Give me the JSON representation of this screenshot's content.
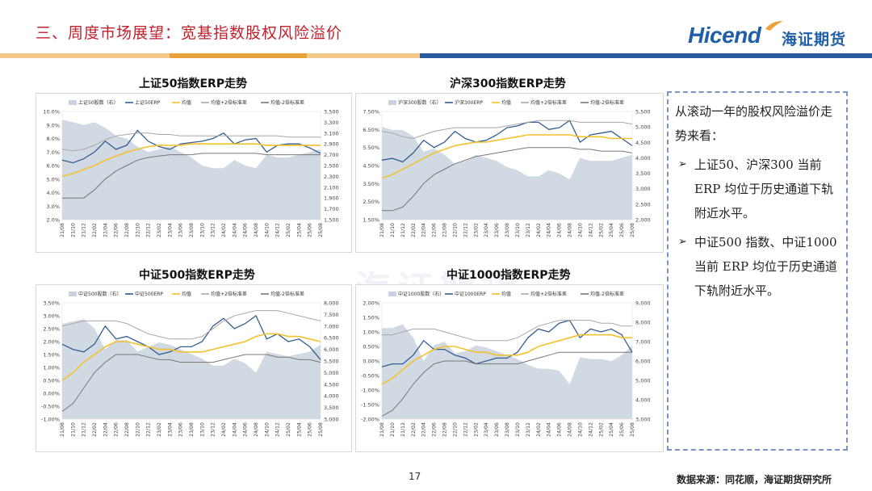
{
  "header": {
    "title": "三、周度市场展望：宽基指数股权风险溢价",
    "logo_en": "Hicend",
    "logo_cn": "海证期货"
  },
  "colors": {
    "title_red": "#c0202a",
    "brand_blue": "#1f5fa8",
    "band_orange": "#e8a23a",
    "band_blue": "#2c5aa0",
    "area_gray": "#c9d2de",
    "erp_blue": "#345d92",
    "mean_yellow": "#f2c12e",
    "upper_gray": "#a8a8a8",
    "lower_gray": "#777777"
  },
  "chart_data": [
    {
      "type": "line",
      "title": "上证50指数ERP走势",
      "legend": [
        "上证50股数（右）",
        "上证50ERP",
        "均值",
        "均值+2倍标准差",
        "均值-2倍标准差"
      ],
      "left_axis": {
        "ticks": [
          "10.0%",
          "9.0%",
          "8.0%",
          "7.0%",
          "6.0%",
          "5.0%",
          "4.0%",
          "3.0%",
          "2.0%"
        ],
        "ylim": [
          2.0,
          10.0
        ]
      },
      "right_axis": {
        "ticks": [
          "3,500",
          "3,300",
          "3,100",
          "2,900",
          "2,700",
          "2,500",
          "2,300",
          "2,100",
          "1,900",
          "1,700",
          "1,500"
        ],
        "ylim": [
          1500,
          3500
        ]
      },
      "x_ticks": [
        "21/08",
        "21/10",
        "21/12",
        "22/02",
        "22/04",
        "22/06",
        "22/08",
        "22/10",
        "22/12",
        "23/02",
        "23/04",
        "23/06",
        "23/08",
        "23/10",
        "23/12",
        "24/02",
        "24/04",
        "24/06",
        "24/08",
        "24/10",
        "24/12",
        "25/02",
        "25/04",
        "25/06",
        "25/08"
      ],
      "series": [
        {
          "name": "上证50股数（右）",
          "axis": "right",
          "values": [
            3350,
            3300,
            3250,
            3300,
            3200,
            3050,
            3000,
            2850,
            2750,
            2800,
            2850,
            2750,
            2650,
            2500,
            2450,
            2450,
            2600,
            2500,
            2450,
            2700,
            2650,
            2650,
            2700,
            2750,
            2800
          ]
        },
        {
          "name": "上证50ERP",
          "axis": "left",
          "values": [
            6.4,
            6.2,
            6.5,
            7.0,
            7.8,
            7.2,
            7.5,
            8.6,
            7.8,
            7.4,
            7.2,
            7.6,
            7.7,
            7.8,
            8.0,
            8.4,
            7.6,
            7.9,
            8.0,
            7.0,
            7.5,
            7.6,
            7.6,
            7.3,
            6.9
          ]
        },
        {
          "name": "均值",
          "axis": "left",
          "values": [
            5.2,
            5.4,
            5.7,
            6.0,
            6.4,
            6.7,
            7.0,
            7.2,
            7.4,
            7.5,
            7.5,
            7.5,
            7.6,
            7.6,
            7.6,
            7.6,
            7.6,
            7.6,
            7.6,
            7.5,
            7.5,
            7.5,
            7.5,
            7.5,
            7.5
          ]
        },
        {
          "name": "均值+2倍标准差",
          "axis": "left",
          "values": [
            7.2,
            7.1,
            7.2,
            7.5,
            7.9,
            8.2,
            8.3,
            8.4,
            8.4,
            8.3,
            8.3,
            8.2,
            8.2,
            8.2,
            8.2,
            8.2,
            8.2,
            8.2,
            8.2,
            8.2,
            8.2,
            8.1,
            8.1,
            8.1,
            8.1
          ]
        },
        {
          "name": "均值-2倍标准差",
          "axis": "left",
          "values": [
            3.6,
            3.6,
            3.6,
            4.2,
            5.0,
            5.6,
            6.0,
            6.4,
            6.6,
            6.7,
            6.8,
            6.8,
            6.8,
            6.9,
            6.9,
            6.9,
            6.9,
            6.9,
            6.9,
            6.8,
            6.8,
            6.8,
            6.8,
            6.8,
            6.8
          ]
        }
      ]
    },
    {
      "type": "line",
      "title": "沪深300指数ERP走势",
      "legend": [
        "沪深300股数（右）",
        "沪深300ERP",
        "均值",
        "均值+2倍标准差",
        "均值-2倍标准差"
      ],
      "left_axis": {
        "ticks": [
          "7.50%",
          "6.50%",
          "5.50%",
          "4.50%",
          "3.50%",
          "2.50%",
          "1.50%"
        ],
        "ylim": [
          1.5,
          7.5
        ]
      },
      "right_axis": {
        "ticks": [
          "5,500",
          "5,000",
          "4,500",
          "4,000",
          "3,500",
          "3,000",
          "2,500",
          "2,000"
        ],
        "ylim": [
          2000,
          5500
        ]
      },
      "x_ticks": [
        "21/08",
        "21/10",
        "21/12",
        "22/02",
        "22/04",
        "22/06",
        "22/08",
        "22/10",
        "22/12",
        "23/02",
        "23/04",
        "23/06",
        "23/08",
        "23/10",
        "23/12",
        "24/02",
        "24/04",
        "24/06",
        "24/08",
        "24/10",
        "24/12",
        "25/02",
        "25/04",
        "25/06",
        "25/08"
      ],
      "series": [
        {
          "name": "沪深300股数（右）",
          "axis": "right",
          "values": [
            5000,
            4900,
            4900,
            4700,
            4200,
            4300,
            4100,
            3800,
            3900,
            4100,
            4000,
            3900,
            3700,
            3600,
            3400,
            3400,
            3600,
            3500,
            3300,
            4000,
            3900,
            3900,
            3900,
            4000,
            4100
          ]
        },
        {
          "name": "沪深300ERP",
          "axis": "left",
          "values": [
            4.8,
            4.9,
            4.7,
            5.2,
            5.9,
            5.5,
            5.8,
            6.4,
            6.0,
            5.8,
            5.9,
            6.2,
            6.6,
            6.7,
            6.9,
            6.9,
            6.5,
            6.6,
            7.0,
            5.8,
            6.2,
            6.3,
            6.4,
            6.0,
            5.6
          ]
        },
        {
          "name": "均值",
          "axis": "left",
          "values": [
            3.8,
            4.0,
            4.3,
            4.6,
            4.9,
            5.2,
            5.4,
            5.6,
            5.7,
            5.8,
            5.8,
            5.9,
            6.0,
            6.1,
            6.2,
            6.2,
            6.2,
            6.2,
            6.2,
            6.1,
            6.1,
            6.1,
            6.0,
            6.0,
            6.0
          ]
        },
        {
          "name": "均值+2倍标准差",
          "axis": "left",
          "values": [
            6.4,
            6.3,
            6.1,
            6.0,
            6.2,
            6.4,
            6.5,
            6.6,
            6.6,
            6.6,
            6.6,
            6.6,
            6.7,
            6.8,
            6.9,
            7.0,
            7.0,
            7.0,
            7.0,
            6.9,
            6.9,
            6.9,
            6.9,
            6.9,
            6.8
          ]
        },
        {
          "name": "均值-2倍标准差",
          "axis": "left",
          "values": [
            2.0,
            2.0,
            2.2,
            2.8,
            3.5,
            4.0,
            4.3,
            4.6,
            4.8,
            5.0,
            5.1,
            5.2,
            5.3,
            5.4,
            5.5,
            5.5,
            5.5,
            5.5,
            5.5,
            5.4,
            5.4,
            5.3,
            5.3,
            5.3,
            5.2
          ]
        }
      ]
    },
    {
      "type": "line",
      "title": "中证500指数ERP走势",
      "legend": [
        "中证500股数（右）",
        "中证500ERP",
        "均值",
        "均值+2倍标准差",
        "均值-2倍标准差"
      ],
      "left_axis": {
        "ticks": [
          "3.50%",
          "3.00%",
          "2.50%",
          "2.00%",
          "1.50%",
          "1.00%",
          "0.50%",
          "0.00%",
          "-0.50%",
          "-1.00%"
        ],
        "ylim": [
          -1.0,
          3.5
        ]
      },
      "right_axis": {
        "ticks": [
          "8,000",
          "7,500",
          "7,000",
          "6,500",
          "6,000",
          "5,500",
          "5,000",
          "4,500",
          "4,000",
          "3,500",
          "3,000"
        ],
        "ylim": [
          3000,
          8000
        ]
      },
      "x_ticks": [
        "21/08",
        "21/10",
        "21/12",
        "22/02",
        "22/04",
        "22/06",
        "22/08",
        "22/10",
        "22/12",
        "23/02",
        "23/04",
        "23/06",
        "23/08",
        "23/10",
        "23/12",
        "24/02",
        "24/04",
        "24/06",
        "24/08",
        "24/10",
        "24/12",
        "25/02",
        "25/04",
        "25/06",
        "25/08"
      ],
      "series": [
        {
          "name": "中证500股数（右）",
          "axis": "right",
          "values": [
            7100,
            7200,
            7300,
            6900,
            6000,
            6400,
            6400,
            5900,
            6100,
            6300,
            6200,
            6000,
            5800,
            5600,
            5300,
            5300,
            5600,
            5400,
            5000,
            5900,
            5800,
            5700,
            5800,
            5900,
            6200
          ]
        },
        {
          "name": "中证500ERP",
          "axis": "left",
          "values": [
            1.9,
            1.7,
            1.6,
            1.9,
            2.6,
            2.1,
            2.2,
            2.0,
            1.8,
            1.5,
            1.6,
            1.8,
            1.8,
            2.0,
            2.6,
            2.9,
            2.5,
            2.7,
            3.0,
            2.1,
            2.3,
            2.0,
            2.1,
            1.8,
            1.3
          ]
        },
        {
          "name": "均值",
          "axis": "left",
          "values": [
            0.5,
            0.8,
            1.2,
            1.5,
            1.8,
            2.0,
            2.0,
            1.9,
            1.8,
            1.7,
            1.7,
            1.6,
            1.6,
            1.6,
            1.7,
            1.8,
            1.9,
            2.0,
            2.2,
            2.3,
            2.3,
            2.2,
            2.2,
            2.1,
            2.0
          ]
        },
        {
          "name": "均值+2倍标准差",
          "axis": "left",
          "values": [
            2.6,
            2.7,
            2.8,
            2.8,
            2.8,
            2.8,
            2.7,
            2.5,
            2.3,
            2.2,
            2.1,
            2.1,
            2.1,
            2.2,
            2.5,
            2.8,
            3.0,
            3.1,
            3.2,
            3.2,
            3.2,
            3.1,
            3.0,
            2.9,
            2.8
          ]
        },
        {
          "name": "均值-2倍标准差",
          "axis": "left",
          "values": [
            -0.7,
            -0.4,
            0.2,
            0.8,
            1.2,
            1.5,
            1.5,
            1.5,
            1.4,
            1.3,
            1.3,
            1.2,
            1.2,
            1.2,
            1.2,
            1.3,
            1.4,
            1.5,
            1.5,
            1.5,
            1.4,
            1.4,
            1.3,
            1.3,
            1.2
          ]
        }
      ]
    },
    {
      "type": "line",
      "title": "中证1000指数ERP走势",
      "legend": [
        "中证1000股数（右）",
        "中证1000ERP",
        "均值",
        "均值+2倍标准差",
        "均值-2倍标准差"
      ],
      "left_axis": {
        "ticks": [
          "2.00%",
          "1.50%",
          "1.00%",
          "0.50%",
          "0.00%",
          "-0.50%",
          "-1.00%",
          "-1.50%",
          "-2.00%"
        ],
        "ylim": [
          -2.0,
          2.0
        ]
      },
      "right_axis": {
        "ticks": [
          "9,000",
          "8,000",
          "7,000",
          "6,000",
          "5,000",
          "4,000",
          "3,000"
        ],
        "ylim": [
          3000,
          9000
        ]
      },
      "x_ticks": [
        "21/08",
        "21/10",
        "21/12",
        "22/02",
        "22/04",
        "22/06",
        "22/08",
        "22/10",
        "22/12",
        "23/02",
        "23/04",
        "23/06",
        "23/08",
        "23/10",
        "23/12",
        "24/02",
        "24/04",
        "24/06",
        "24/08",
        "24/10",
        "24/12",
        "25/02",
        "25/04",
        "25/06",
        "25/08"
      ],
      "series": [
        {
          "name": "中证1000股数（右）",
          "axis": "right",
          "values": [
            7700,
            7700,
            7900,
            7200,
            6000,
            6800,
            7000,
            6400,
            6500,
            6800,
            6700,
            6500,
            6300,
            6100,
            5800,
            5600,
            5600,
            5500,
            4800,
            6200,
            6100,
            6100,
            6000,
            6300,
            6800
          ]
        },
        {
          "name": "中证1000ERP",
          "axis": "left",
          "values": [
            -0.2,
            -0.1,
            -0.1,
            0.2,
            0.7,
            0.4,
            0.4,
            0.2,
            0.1,
            -0.1,
            0.0,
            0.1,
            0.1,
            0.3,
            0.8,
            1.1,
            1.0,
            1.3,
            1.4,
            0.8,
            1.1,
            1.0,
            1.1,
            0.9,
            0.3
          ]
        },
        {
          "name": "均值",
          "axis": "left",
          "values": [
            -0.8,
            -0.6,
            -0.3,
            0.0,
            0.2,
            0.4,
            0.5,
            0.5,
            0.4,
            0.3,
            0.3,
            0.2,
            0.2,
            0.2,
            0.3,
            0.5,
            0.6,
            0.7,
            0.8,
            0.9,
            0.9,
            0.9,
            0.9,
            0.8,
            0.8
          ]
        },
        {
          "name": "均值+2倍标准差",
          "axis": "left",
          "values": [
            0.9,
            0.9,
            1.0,
            1.1,
            1.1,
            1.1,
            1.0,
            0.9,
            0.8,
            0.7,
            0.7,
            0.7,
            0.7,
            0.8,
            1.0,
            1.2,
            1.3,
            1.4,
            1.4,
            1.4,
            1.4,
            1.3,
            1.3,
            1.2,
            1.2
          ]
        },
        {
          "name": "均值-2倍标准差",
          "axis": "left",
          "values": [
            -1.9,
            -1.7,
            -1.3,
            -0.8,
            -0.4,
            -0.1,
            0.0,
            0.0,
            0.0,
            -0.1,
            -0.1,
            -0.1,
            -0.1,
            -0.1,
            0.0,
            0.1,
            0.2,
            0.3,
            0.3,
            0.3,
            0.3,
            0.3,
            0.3,
            0.3,
            0.3
          ]
        }
      ]
    }
  ],
  "notes": {
    "intro": "从滚动一年的股权风险溢价走势来看：",
    "bullets": [
      "上证50、沪深300 当前ERP 均位于历史通道下轨附近水平。",
      "中证500 指数、中证1000当前 ERP 均位于历史通道下轨附近水平。"
    ]
  },
  "footer": {
    "page_number": "17",
    "source": "数据来源：同花顺，海证期货研究所"
  },
  "watermark": "海证期货"
}
